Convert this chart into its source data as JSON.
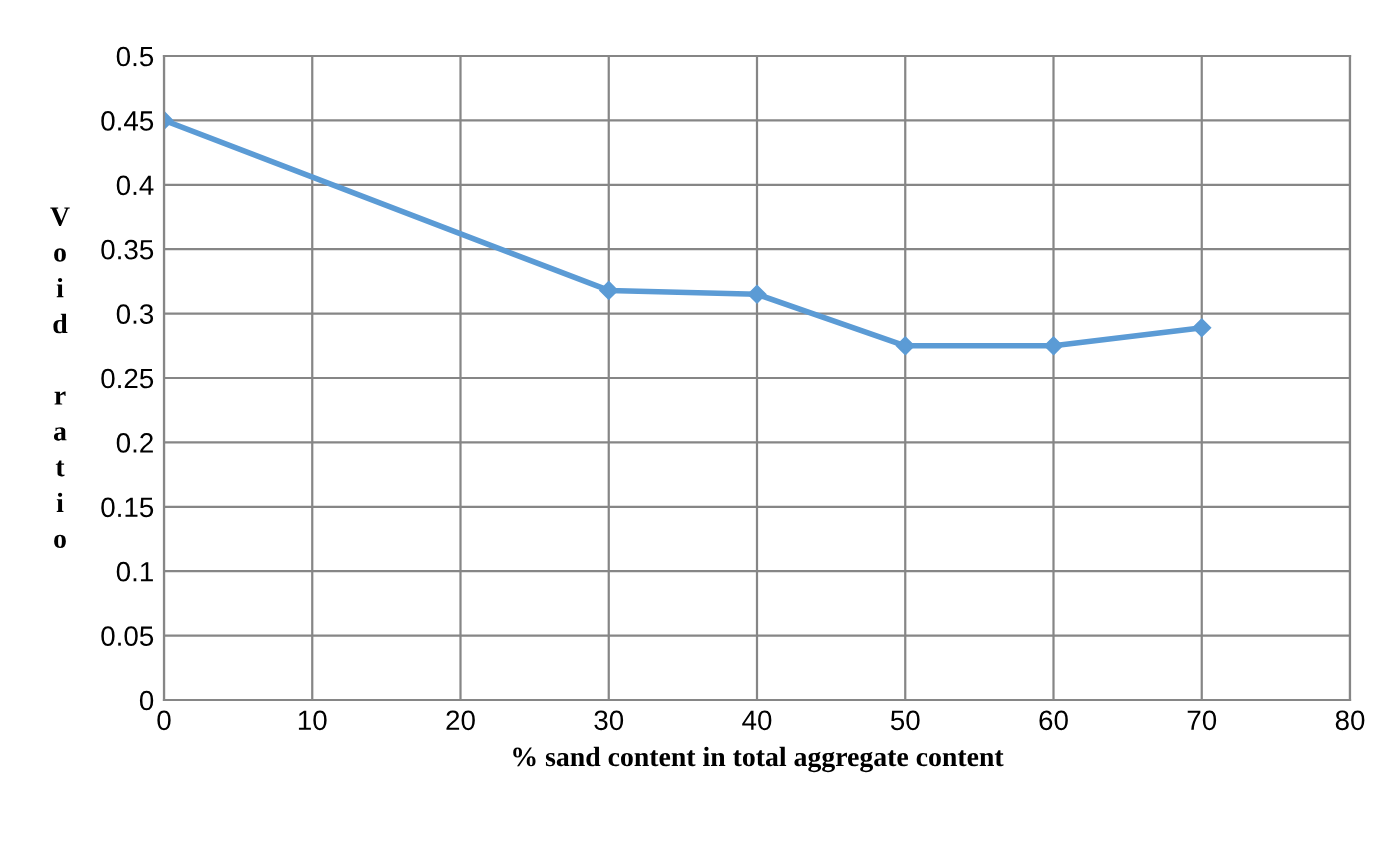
{
  "chart_data": {
    "type": "line",
    "xlabel": "% sand content in total aggregate content",
    "ylabel": "Void ratio",
    "x": [
      0,
      30,
      40,
      50,
      60,
      70
    ],
    "series": [
      {
        "color": "#5b9bd5",
        "values": [
          0.45,
          0.318,
          0.315,
          0.275,
          0.275,
          0.289
        ]
      }
    ],
    "xlim": [
      0,
      80
    ],
    "xticks": [
      0,
      10,
      20,
      30,
      40,
      50,
      60,
      70,
      80
    ],
    "ylim": [
      0,
      0.5
    ],
    "yticks": [
      0,
      0.05,
      0.1,
      0.15,
      0.2,
      0.25,
      0.3,
      0.35,
      0.4,
      0.45,
      0.5
    ],
    "grid": true,
    "marker": "diamond",
    "line_style": "solid",
    "legend": false
  }
}
